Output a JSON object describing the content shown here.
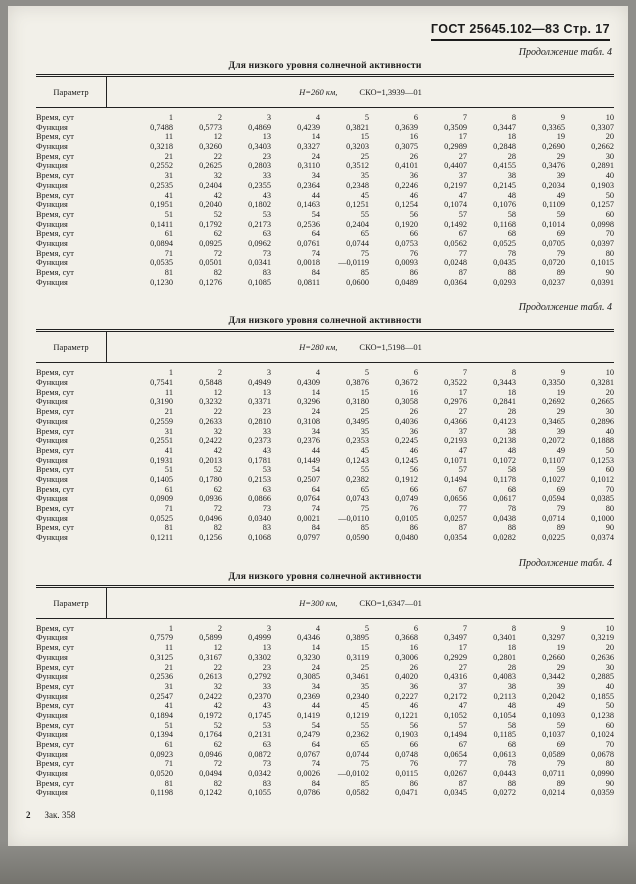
{
  "header": {
    "gost_page": "ГОСТ 25645.102—83 Стр. 17"
  },
  "footer": {
    "page_number": "2",
    "order_note": "Зак. 358"
  },
  "tables": [
    {
      "continuation": "Продолжение табл. 4",
      "title": "Для низкого уровня солнечной активности",
      "param_label": "Параметр",
      "altitude": "Н=260 км,",
      "sko": "СКО=1,3939—01",
      "rows": [
        {
          "label": "Время, сут",
          "values": [
            "1",
            "2",
            "3",
            "4",
            "5",
            "6",
            "7",
            "8",
            "9",
            "10"
          ]
        },
        {
          "label": "Функция",
          "values": [
            "0,7488",
            "0,5773",
            "0,4869",
            "0,4239",
            "0,3821",
            "0,3639",
            "0,3509",
            "0,3447",
            "0,3365",
            "0,3307"
          ]
        },
        {
          "label": "Время, сут",
          "values": [
            "11",
            "12",
            "13",
            "14",
            "15",
            "16",
            "17",
            "18",
            "19",
            "20"
          ]
        },
        {
          "label": "Функция",
          "values": [
            "0,3218",
            "0,3260",
            "0,3403",
            "0,3327",
            "0,3203",
            "0,3075",
            "0,2989",
            "0,2848",
            "0,2690",
            "0,2662"
          ]
        },
        {
          "label": "Время, сут",
          "values": [
            "21",
            "22",
            "23",
            "24",
            "25",
            "26",
            "27",
            "28",
            "29",
            "30"
          ]
        },
        {
          "label": "Функция",
          "values": [
            "0,2552",
            "0,2625",
            "0,2803",
            "0,3110",
            "0,3512",
            "0,4101",
            "0,4407",
            "0,4155",
            "0,3476",
            "0,2891"
          ]
        },
        {
          "label": "Время, сут",
          "values": [
            "31",
            "32",
            "33",
            "34",
            "35",
            "36",
            "37",
            "38",
            "39",
            "40"
          ]
        },
        {
          "label": "Функция",
          "values": [
            "0,2535",
            "0,2404",
            "0,2355",
            "0,2364",
            "0,2348",
            "0,2246",
            "0,2197",
            "0,2145",
            "0,2034",
            "0,1903"
          ]
        },
        {
          "label": "Время, сут",
          "values": [
            "41",
            "42",
            "43",
            "44",
            "45",
            "46",
            "47",
            "48",
            "49",
            "50"
          ]
        },
        {
          "label": "Функция",
          "values": [
            "0,1951",
            "0,2040",
            "0,1802",
            "0,1463",
            "0,1251",
            "0,1254",
            "0,1074",
            "0,1076",
            "0,1109",
            "0,1257"
          ]
        },
        {
          "label": "Время, сут",
          "values": [
            "51",
            "52",
            "53",
            "54",
            "55",
            "56",
            "57",
            "58",
            "59",
            "60"
          ]
        },
        {
          "label": "Функция",
          "values": [
            "0,1411",
            "0,1792",
            "0,2173",
            "0,2536",
            "0,2404",
            "0,1920",
            "0,1492",
            "0,1168",
            "0,1014",
            "0,0998"
          ]
        },
        {
          "label": "Время, сут",
          "values": [
            "61",
            "62",
            "63",
            "64",
            "65",
            "66",
            "67",
            "68",
            "69",
            "70"
          ]
        },
        {
          "label": "Функция",
          "values": [
            "0,0894",
            "0,0925",
            "0,0962",
            "0,0761",
            "0,0744",
            "0,0753",
            "0,0562",
            "0,0525",
            "0,0705",
            "0,0397"
          ]
        },
        {
          "label": "Время, сут",
          "values": [
            "71",
            "72",
            "73",
            "74",
            "75",
            "76",
            "77",
            "78",
            "79",
            "80"
          ]
        },
        {
          "label": "Функция",
          "values": [
            "0,0535",
            "0,0501",
            "0,0341",
            "0,0018",
            "—0,0119",
            "0,0093",
            "0,0248",
            "0,0435",
            "0,0720",
            "0,1015"
          ]
        },
        {
          "label": "Время, сут",
          "values": [
            "81",
            "82",
            "83",
            "84",
            "85",
            "86",
            "87",
            "88",
            "89",
            "90"
          ]
        },
        {
          "label": "Функция",
          "values": [
            "0,1230",
            "0,1276",
            "0,1085",
            "0,0811",
            "0,0600",
            "0,0489",
            "0,0364",
            "0,0293",
            "0,0237",
            "0,0391"
          ]
        }
      ]
    },
    {
      "continuation": "Продолжение табл. 4",
      "title": "Для низкого уровня солнечной активности",
      "param_label": "Параметр",
      "altitude": "Н=280 км,",
      "sko": "СКО=1,5198—01",
      "rows": [
        {
          "label": "Время, сут",
          "values": [
            "1",
            "2",
            "3",
            "4",
            "5",
            "6",
            "7",
            "8",
            "9",
            "10"
          ]
        },
        {
          "label": "Функция",
          "values": [
            "0,7541",
            "0,5848",
            "0,4949",
            "0,4309",
            "0,3876",
            "0,3672",
            "0,3522",
            "0,3443",
            "0,3350",
            "0,3281"
          ]
        },
        {
          "label": "Время, сут",
          "values": [
            "11",
            "12",
            "13",
            "14",
            "15",
            "16",
            "17",
            "18",
            "19",
            "20"
          ]
        },
        {
          "label": "Функция",
          "values": [
            "0,3190",
            "0,3232",
            "0,3371",
            "0,3296",
            "0,3180",
            "0,3058",
            "0,2976",
            "0,2841",
            "0,2692",
            "0,2665"
          ]
        },
        {
          "label": "Время, сут",
          "values": [
            "21",
            "22",
            "23",
            "24",
            "25",
            "26",
            "27",
            "28",
            "29",
            "30"
          ]
        },
        {
          "label": "Функция",
          "values": [
            "0,2559",
            "0,2633",
            "0,2810",
            "0,3108",
            "0,3495",
            "0,4036",
            "0,4366",
            "0,4123",
            "0,3465",
            "0,2896"
          ]
        },
        {
          "label": "Время, сут",
          "values": [
            "31",
            "32",
            "33",
            "34",
            "35",
            "36",
            "37",
            "38",
            "39",
            "40"
          ]
        },
        {
          "label": "Функция",
          "values": [
            "0,2551",
            "0,2422",
            "0,2373",
            "0,2376",
            "0,2353",
            "0,2245",
            "0,2193",
            "0,2138",
            "0,2072",
            "0,1888"
          ]
        },
        {
          "label": "Время, сут",
          "values": [
            "41",
            "42",
            "43",
            "44",
            "45",
            "46",
            "47",
            "48",
            "49",
            "50"
          ]
        },
        {
          "label": "Функция",
          "values": [
            "0,1931",
            "0,2013",
            "0,1781",
            "0,1449",
            "0,1243",
            "0,1245",
            "0,1071",
            "0,1072",
            "0,1107",
            "0,1253"
          ]
        },
        {
          "label": "Время, сут",
          "values": [
            "51",
            "52",
            "53",
            "54",
            "55",
            "56",
            "57",
            "58",
            "59",
            "60"
          ]
        },
        {
          "label": "Функция",
          "values": [
            "0,1405",
            "0,1780",
            "0,2153",
            "0,2507",
            "0,2382",
            "0,1912",
            "0,1494",
            "0,1178",
            "0,1027",
            "0,1012"
          ]
        },
        {
          "label": "Время, сут",
          "values": [
            "61",
            "62",
            "63",
            "64",
            "65",
            "66",
            "67",
            "68",
            "69",
            "70"
          ]
        },
        {
          "label": "Функция",
          "values": [
            "0,0909",
            "0,0936",
            "0,0866",
            "0,0764",
            "0,0743",
            "0,0749",
            "0,0656",
            "0,0617",
            "0,0594",
            "0,0385"
          ]
        },
        {
          "label": "Время, сут",
          "values": [
            "71",
            "72",
            "73",
            "74",
            "75",
            "76",
            "77",
            "78",
            "79",
            "80"
          ]
        },
        {
          "label": "Функция",
          "values": [
            "0,0525",
            "0,0496",
            "0,0340",
            "0,0021",
            "—0,0110",
            "0,0105",
            "0,0257",
            "0,0438",
            "0,0714",
            "0,1000"
          ]
        },
        {
          "label": "Время, сут",
          "values": [
            "81",
            "82",
            "83",
            "84",
            "85",
            "86",
            "87",
            "88",
            "89",
            "90"
          ]
        },
        {
          "label": "Функция",
          "values": [
            "0,1211",
            "0,1256",
            "0,1068",
            "0,0797",
            "0,0590",
            "0,0480",
            "0,0354",
            "0,0282",
            "0,0225",
            "0,0374"
          ]
        }
      ]
    },
    {
      "continuation": "Продолжение табл. 4",
      "title": "Для низкого уровня солнечной активности",
      "param_label": "Параметр",
      "altitude": "Н=300 км,",
      "sko": "СКО=1,6347—01",
      "rows": [
        {
          "label": "Время, сут",
          "values": [
            "1",
            "2",
            "3",
            "4",
            "5",
            "6",
            "7",
            "8",
            "9",
            "10"
          ]
        },
        {
          "label": "Функция",
          "values": [
            "0,7579",
            "0,5899",
            "0,4999",
            "0,4346",
            "0,3895",
            "0,3668",
            "0,3497",
            "0,3401",
            "0,3297",
            "0,3219"
          ]
        },
        {
          "label": "Время, сут",
          "values": [
            "11",
            "12",
            "13",
            "14",
            "15",
            "16",
            "17",
            "18",
            "19",
            "20"
          ]
        },
        {
          "label": "Функция",
          "values": [
            "0,3125",
            "0,3167",
            "0,3302",
            "0,3230",
            "0,3119",
            "0,3006",
            "0,2929",
            "0,2801",
            "0,2660",
            "0,2636"
          ]
        },
        {
          "label": "Время, сут",
          "values": [
            "21",
            "22",
            "23",
            "24",
            "25",
            "26",
            "27",
            "28",
            "29",
            "30"
          ]
        },
        {
          "label": "Функция",
          "values": [
            "0,2536",
            "0,2613",
            "0,2792",
            "0,3085",
            "0,3461",
            "0,4020",
            "0,4316",
            "0,4083",
            "0,3442",
            "0,2885"
          ]
        },
        {
          "label": "Время, сут",
          "values": [
            "31",
            "32",
            "33",
            "34",
            "35",
            "36",
            "37",
            "38",
            "39",
            "40"
          ]
        },
        {
          "label": "Функция",
          "values": [
            "0,2547",
            "0,2422",
            "0,2370",
            "0,2369",
            "0,2340",
            "0,2227",
            "0,2172",
            "0,2113",
            "0,2042",
            "0,1855"
          ]
        },
        {
          "label": "Время, сут",
          "values": [
            "41",
            "42",
            "43",
            "44",
            "45",
            "46",
            "47",
            "48",
            "49",
            "50"
          ]
        },
        {
          "label": "Функция",
          "values": [
            "0,1894",
            "0,1972",
            "0,1745",
            "0,1419",
            "0,1219",
            "0,1221",
            "0,1052",
            "0,1054",
            "0,1093",
            "0,1238"
          ]
        },
        {
          "label": "Время, сут",
          "values": [
            "51",
            "52",
            "53",
            "54",
            "55",
            "56",
            "57",
            "58",
            "59",
            "60"
          ]
        },
        {
          "label": "Функция",
          "values": [
            "0,1394",
            "0,1764",
            "0,2131",
            "0,2479",
            "0,2362",
            "0,1903",
            "0,1494",
            "0,1185",
            "0,1037",
            "0,1024"
          ]
        },
        {
          "label": "Время, сут",
          "values": [
            "61",
            "62",
            "63",
            "64",
            "65",
            "66",
            "67",
            "68",
            "69",
            "70"
          ]
        },
        {
          "label": "Функция",
          "values": [
            "0,0923",
            "0,0946",
            "0,0872",
            "0,0767",
            "0,0744",
            "0,0748",
            "0,0654",
            "0,0613",
            "0,0589",
            "0,0678"
          ]
        },
        {
          "label": "Время, сут",
          "values": [
            "71",
            "72",
            "73",
            "74",
            "75",
            "76",
            "77",
            "78",
            "79",
            "80"
          ]
        },
        {
          "label": "Функция",
          "values": [
            "0,0520",
            "0,0494",
            "0,0342",
            "0,0026",
            "—0,0102",
            "0,0115",
            "0,0267",
            "0,0443",
            "0,0711",
            "0,0990"
          ]
        },
        {
          "label": "Время, сут",
          "values": [
            "81",
            "82",
            "83",
            "84",
            "85",
            "86",
            "87",
            "88",
            "89",
            "90"
          ]
        },
        {
          "label": "Функция",
          "values": [
            "0,1198",
            "0,1242",
            "0,1055",
            "0,0786",
            "0,0582",
            "0,0471",
            "0,0345",
            "0,0272",
            "0,0214",
            "0,0359"
          ]
        }
      ]
    }
  ]
}
